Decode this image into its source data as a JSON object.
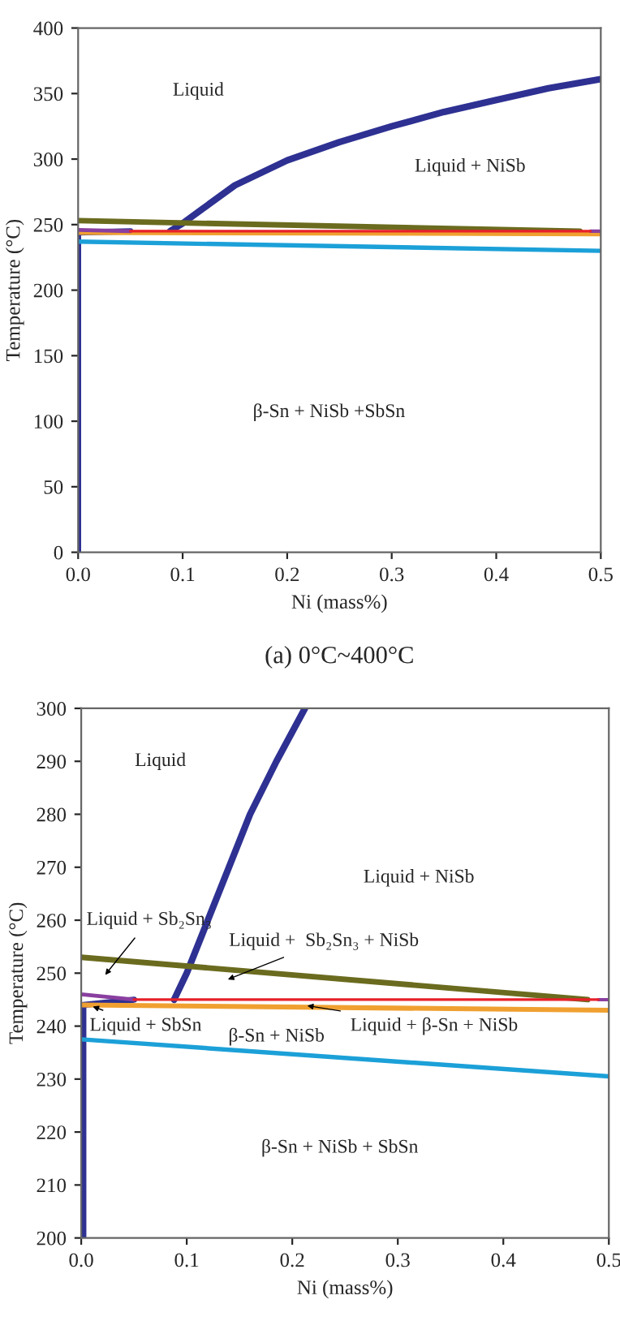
{
  "chart_data": [
    {
      "type": "line",
      "xlabel": "Ni (mass%)",
      "ylabel": "Temperature (°C)",
      "xlim": [
        0,
        0.5
      ],
      "ylim": [
        0,
        400
      ],
      "xticks": [
        {
          "value": 0,
          "label": "0.0"
        },
        0.1,
        0.2,
        0.3,
        0.4,
        0.5
      ],
      "yticks": [
        0,
        50,
        100,
        150,
        200,
        250,
        300,
        350,
        400
      ],
      "grid": false,
      "legend": false,
      "marker": "none",
      "line_style": "solid",
      "series": [
        {
          "color": "#2e3192",
          "x": [
            0.088,
            0.1,
            0.15,
            0.2,
            0.25,
            0.3,
            0.35,
            0.4,
            0.45,
            0.5
          ],
          "values": [
            245,
            251,
            280,
            299,
            313,
            325,
            336,
            345,
            354,
            361
          ]
        },
        {
          "color": "#2e3192",
          "x": [
            0,
            0,
            0.05
          ],
          "values": [
            0,
            244,
            245
          ]
        },
        {
          "color": "#6b6b1f",
          "x": [
            0,
            0.48
          ],
          "values": [
            253,
            245
          ]
        },
        {
          "color": "#f0a030",
          "x": [
            0,
            0.5
          ],
          "values": [
            244,
            243
          ]
        },
        {
          "color": "#1ca0d8",
          "x": [
            0,
            0.5
          ],
          "values": [
            237,
            230
          ]
        },
        {
          "color": "#8a3fa0",
          "x": [
            0,
            0.05
          ],
          "values": [
            246,
            245
          ]
        },
        {
          "color": "#8a3fa0",
          "x": [
            0.49,
            0.5
          ],
          "values": [
            245,
            245
          ]
        },
        {
          "color": "#e8202a",
          "x": [
            0.05,
            0.49
          ],
          "values": [
            245,
            245
          ]
        }
      ],
      "annotations": [
        "Liquid",
        "Liquid + NiSb",
        "β-Sn + NiSb +SbSn",
        "(a) 0°C~400°C"
      ]
    },
    {
      "type": "line",
      "xlabel": "Ni (mass%)",
      "ylabel": "Temperature (°C)",
      "xlim": [
        0,
        0.5
      ],
      "ylim": [
        200,
        300
      ],
      "xticks": [
        {
          "value": 0,
          "label": "0.0"
        },
        0.1,
        0.2,
        0.3,
        0.4,
        0.5
      ],
      "yticks": [
        200,
        210,
        220,
        230,
        240,
        250,
        260,
        270,
        280,
        290,
        300
      ],
      "grid": false,
      "legend": false,
      "marker": "none",
      "line_style": "solid",
      "series": [
        {
          "color": "#2e3192",
          "x": [
            0.088,
            0.1,
            0.12,
            0.14,
            0.16,
            0.185,
            0.212
          ],
          "values": [
            245,
            250,
            260,
            270,
            280,
            290,
            300
          ]
        },
        {
          "color": "#2e3192",
          "x": [
            0.002,
            0.002,
            0.05
          ],
          "values": [
            200,
            244,
            245
          ]
        },
        {
          "color": "#6b6b1f",
          "x": [
            0,
            0.48
          ],
          "values": [
            253,
            245
          ]
        },
        {
          "color": "#f0a030",
          "x": [
            0,
            0.5
          ],
          "values": [
            244,
            243
          ]
        },
        {
          "color": "#1ca0d8",
          "x": [
            0,
            0.5
          ],
          "values": [
            237.5,
            230.5
          ]
        },
        {
          "color": "#8a3fa0",
          "x": [
            0,
            0.05
          ],
          "values": [
            246,
            245
          ]
        },
        {
          "color": "#8a3fa0",
          "x": [
            0.49,
            0.5
          ],
          "values": [
            245,
            245
          ]
        },
        {
          "color": "#e8202a",
          "x": [
            0.05,
            0.49
          ],
          "values": [
            245,
            245
          ]
        }
      ],
      "annotations": [
        "Liquid",
        "Liquid + NiSb",
        "Liquid + Sb₂Sn₃",
        "Liquid +  Sb₂Sn₃ + NiSb",
        "Liquid + SbSn",
        "β-Sn + NiSb",
        "Liquid + β-Sn + NiSb",
        "β-Sn + NiSb + SbSn"
      ]
    }
  ]
}
